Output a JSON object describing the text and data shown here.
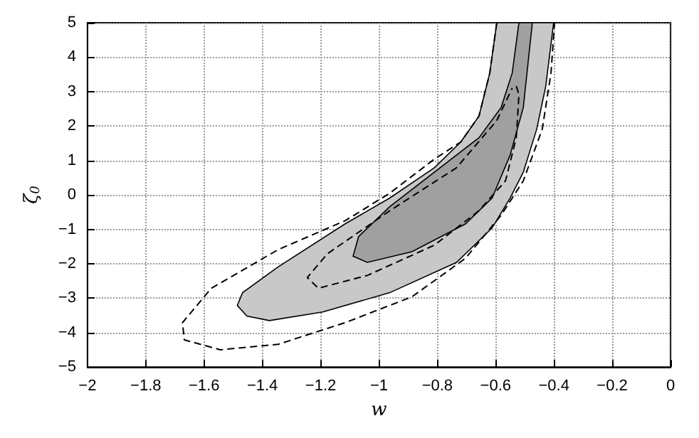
{
  "chart_data": {
    "type": "line",
    "xlabel": "w",
    "ylabel": "ζ$_{0}$",
    "xlim": [
      -2,
      0
    ],
    "ylim": [
      -5,
      5
    ],
    "xticks": [
      -2,
      -1.8,
      -1.6,
      -1.4,
      -1.2,
      -1,
      -0.8,
      -0.6,
      -0.4,
      -0.2,
      0
    ],
    "yticks": [
      -5,
      -4,
      -3,
      -2,
      -1,
      0,
      1,
      2,
      3,
      4,
      5
    ],
    "grid": true,
    "series": [
      {
        "type": "area",
        "color": "#c8c8c8",
        "x": [
          -0.596,
          -0.62,
          -0.657,
          -0.719,
          -0.81,
          -0.963,
          -1.116,
          -1.346,
          -1.468,
          -1.486,
          -1.453,
          -1.376,
          -1.193,
          -0.963,
          -0.734,
          -0.612,
          -0.55,
          -0.505,
          -0.459,
          -0.428,
          -0.401
        ],
        "values": [
          5,
          3.54,
          2.29,
          1.54,
          0.79,
          -0.09,
          -0.84,
          -2.09,
          -2.84,
          -3.21,
          -3.52,
          -3.65,
          -3.4,
          -2.84,
          -1.96,
          -0.96,
          -0.09,
          0.66,
          1.91,
          3.16,
          5
        ]
      },
      {
        "type": "area",
        "color": "#a0a0a0",
        "x": [
          -0.52,
          -0.543,
          -0.581,
          -0.657,
          -0.81,
          -0.963,
          -1.07,
          -1.089,
          -1.04,
          -0.887,
          -0.703,
          -0.612,
          -0.55,
          -0.505,
          -0.474
        ],
        "values": [
          5,
          3.54,
          2.54,
          1.66,
          0.66,
          -0.34,
          -1.21,
          -1.78,
          -1.96,
          -1.65,
          -0.84,
          -0.09,
          1.16,
          2.54,
          5
        ]
      },
      {
        "line_style": "dashed",
        "color": "#000000",
        "x": [
          -0.596,
          -0.62,
          -0.657,
          -0.719,
          -0.81,
          -0.963,
          -1.116,
          -1.346,
          -1.575,
          -1.674,
          -1.668,
          -1.544,
          -1.346,
          -1.116,
          -0.887,
          -0.703,
          -0.581,
          -0.505,
          -0.44,
          -0.41,
          -0.398
        ],
        "values": [
          5,
          3.54,
          2.29,
          1.54,
          1.04,
          0.05,
          -0.75,
          -1.59,
          -2.71,
          -3.71,
          -4.21,
          -4.5,
          -4.34,
          -3.71,
          -2.96,
          -1.84,
          -0.59,
          0.41,
          1.91,
          3.54,
          5
        ]
      },
      {
        "line_style": "dashed",
        "color": "#000000",
        "x": [
          -0.529,
          -0.52,
          -0.529,
          -0.566,
          -0.657,
          -0.81,
          -1.04,
          -1.208,
          -1.246,
          -1.177,
          -0.963,
          -0.734,
          -0.596,
          -0.543
        ],
        "values": [
          3.16,
          2.91,
          1.66,
          0.41,
          -0.46,
          -1.46,
          -2.34,
          -2.71,
          -2.4,
          -1.71,
          -0.46,
          0.79,
          2.16,
          3.1
        ]
      }
    ]
  }
}
